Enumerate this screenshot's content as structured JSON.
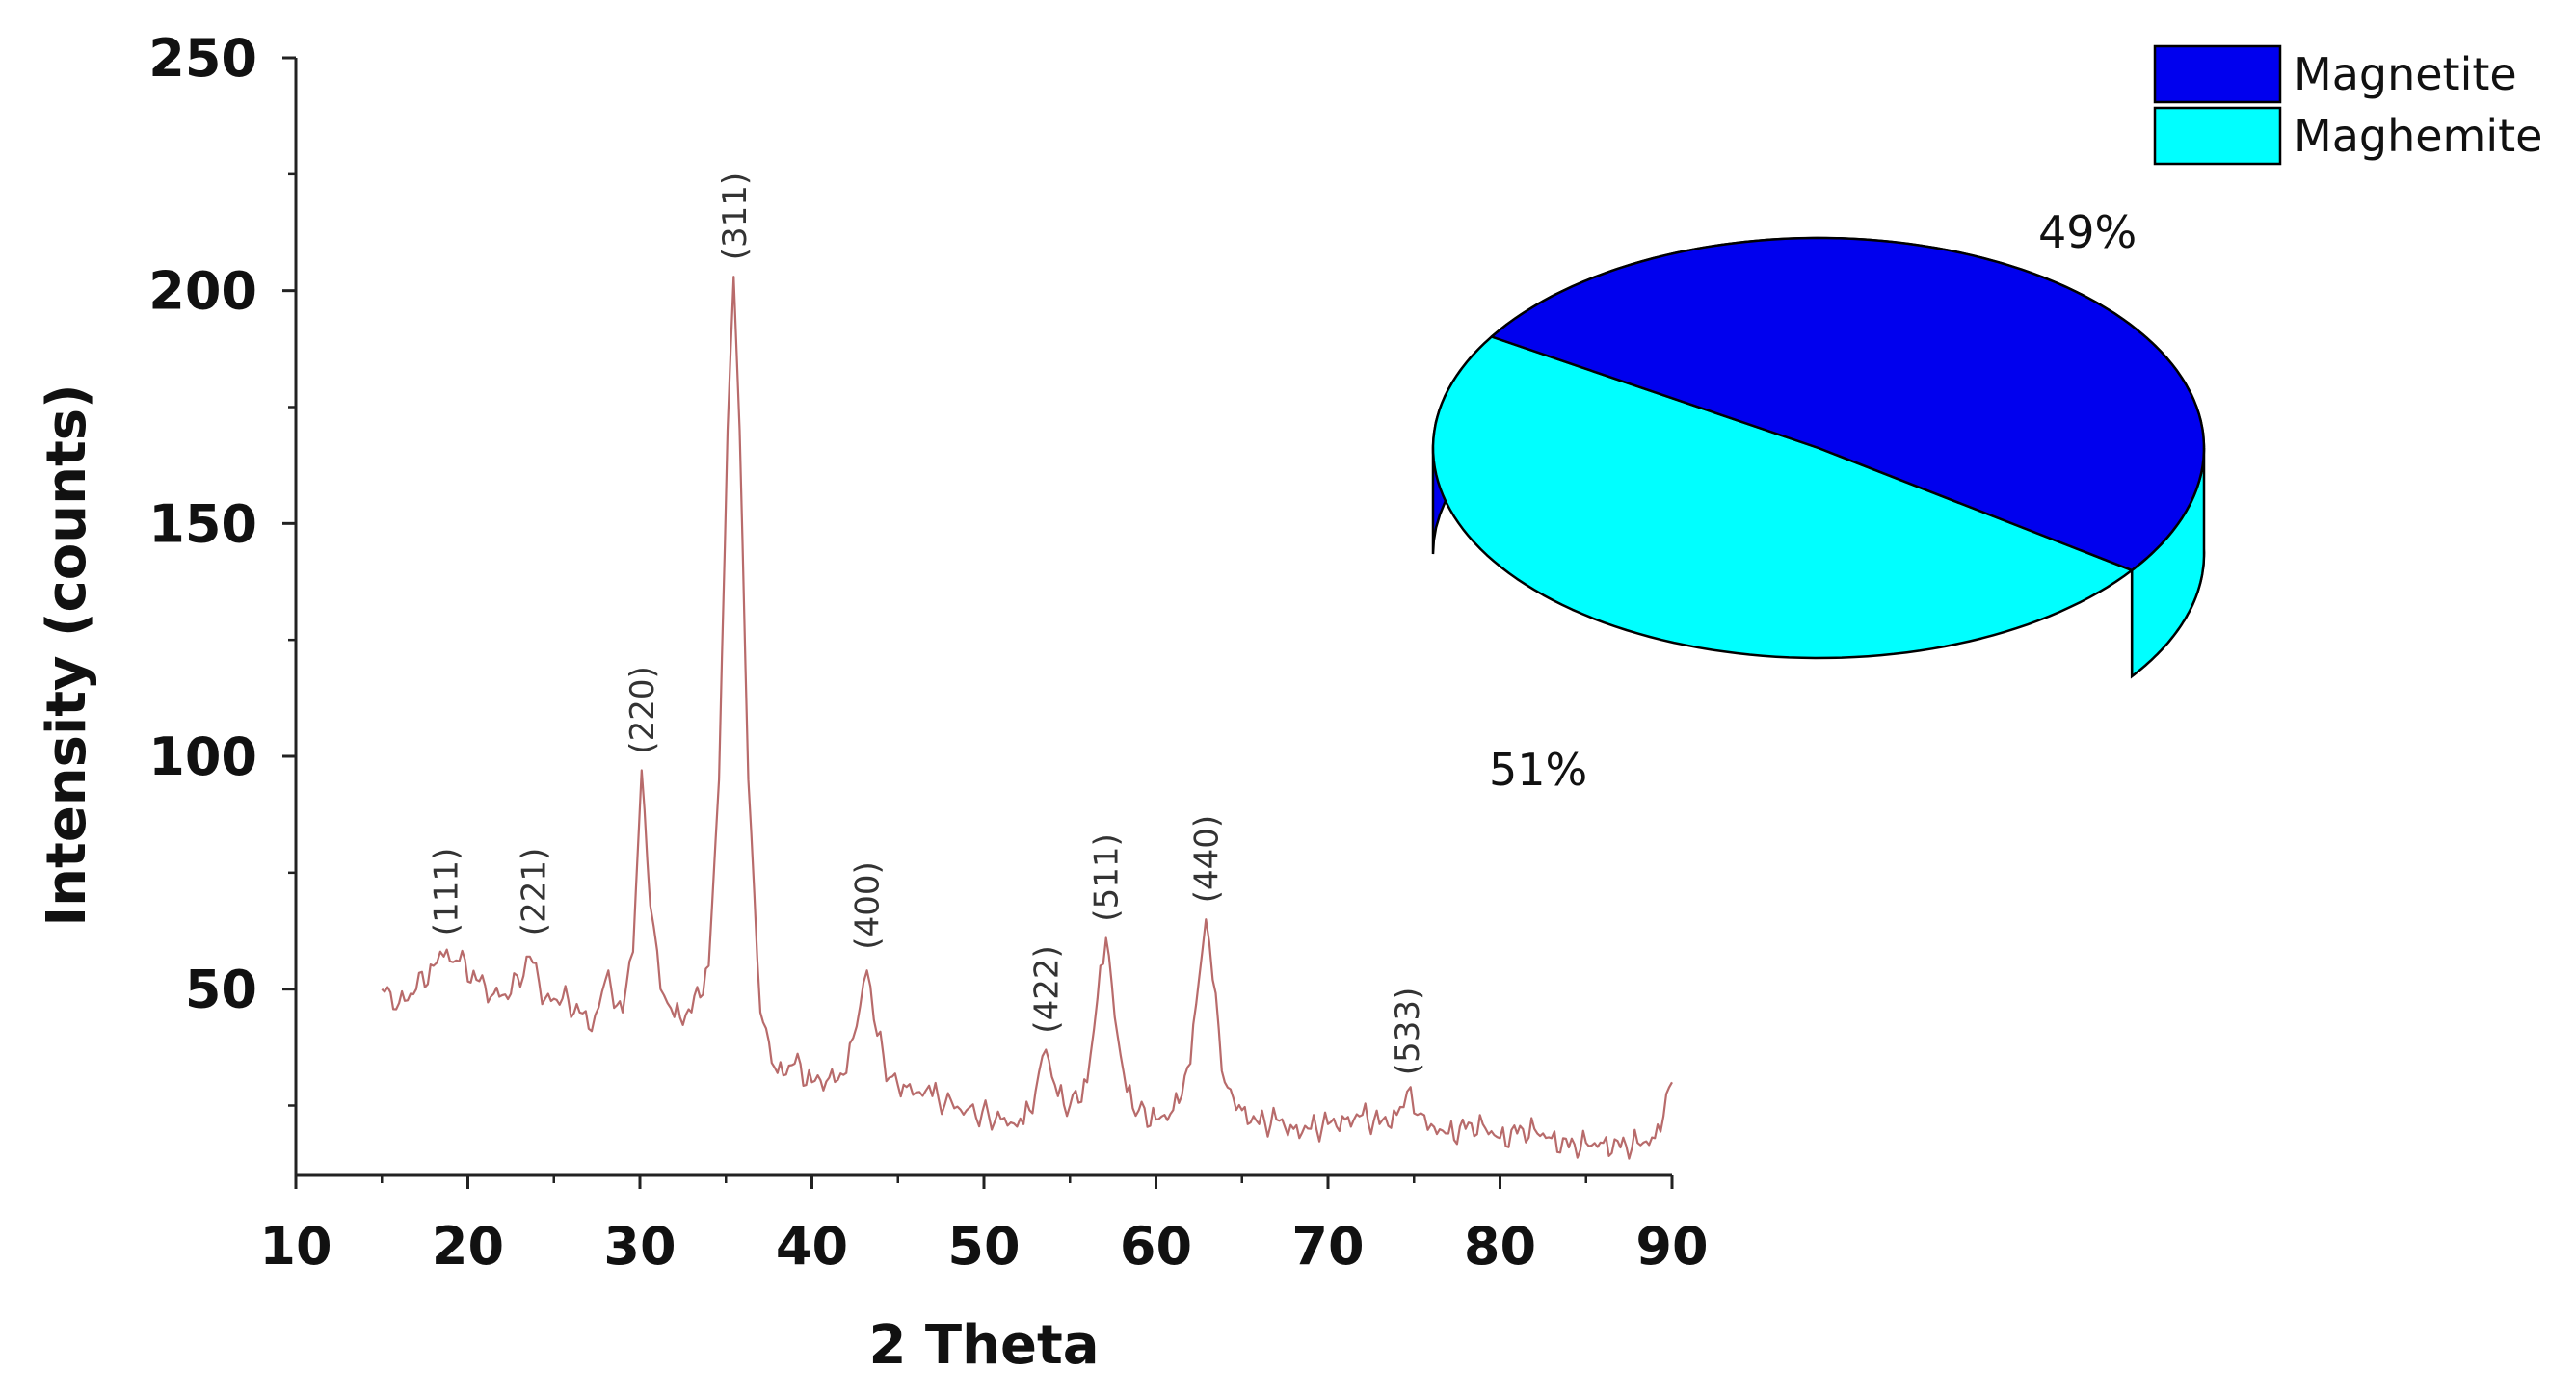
{
  "chart_data": [
    {
      "type": "line",
      "title": "",
      "xlabel": "2 Theta",
      "ylabel": "Intensity (counts)",
      "xlim": [
        10,
        90
      ],
      "ylim": [
        10,
        250
      ],
      "xticks": [
        "10",
        "20",
        "30",
        "40",
        "50",
        "60",
        "70",
        "80",
        "90"
      ],
      "yticks": [
        "50",
        "100",
        "150",
        "200",
        "250"
      ],
      "grid": false,
      "line_color": "#b86b6b",
      "series": [
        {
          "x": [
            15,
            16,
            17,
            18,
            18.6,
            19.5,
            20.5,
            21.5,
            22.5,
            23.6,
            24.5,
            25.5,
            26.5,
            27.2,
            28,
            29,
            29.6,
            30.1,
            30.6,
            31.2,
            32,
            33,
            34,
            34.6,
            35.1,
            35.45,
            35.8,
            36.3,
            37,
            38,
            39,
            40,
            41,
            42,
            42.6,
            43.2,
            43.8,
            44.5,
            45.5,
            47,
            49,
            51,
            52.3,
            53,
            53.6,
            54.3,
            55,
            56,
            56.6,
            57.1,
            57.6,
            58.3,
            59,
            60,
            61,
            62,
            62.5,
            62.9,
            63.3,
            64,
            65,
            66,
            67,
            68,
            69,
            70,
            71,
            72,
            73,
            74,
            74.6,
            75.2,
            76,
            77,
            78,
            79,
            80,
            81,
            82,
            83,
            84,
            85,
            86,
            87,
            88,
            89,
            90
          ],
          "y": [
            50,
            47,
            50,
            55,
            57,
            56,
            52,
            49,
            49,
            57,
            48,
            48,
            45,
            41,
            52,
            45,
            58,
            97,
            68,
            50,
            44,
            45,
            55,
            95,
            170,
            203,
            170,
            95,
            45,
            32,
            34,
            30,
            31,
            32,
            42,
            54,
            40,
            31,
            29,
            27,
            24,
            22,
            21,
            28,
            37,
            27,
            25,
            30,
            48,
            61,
            44,
            28,
            24,
            22,
            24,
            34,
            52,
            65,
            52,
            30,
            24,
            21,
            22,
            20,
            20,
            21,
            22,
            23,
            21,
            23,
            28,
            23,
            21,
            19,
            20,
            21,
            18,
            19,
            20,
            18,
            16,
            17,
            17,
            16,
            17,
            18,
            30
          ]
        }
      ],
      "annotations": [
        {
          "label": "(111)",
          "x": 18.7,
          "y": 59
        },
        {
          "label": "(221)",
          "x": 23.8,
          "y": 59
        },
        {
          "label": "(220)",
          "x": 30.1,
          "y": 98
        },
        {
          "label": "(311)",
          "x": 35.5,
          "y": 204
        },
        {
          "label": "(400)",
          "x": 43.2,
          "y": 56
        },
        {
          "label": "(422)",
          "x": 53.6,
          "y": 38
        },
        {
          "label": "(511)",
          "x": 57.1,
          "y": 62
        },
        {
          "label": "(440)",
          "x": 62.9,
          "y": 66
        },
        {
          "label": "(533)",
          "x": 74.6,
          "y": 29
        }
      ]
    },
    {
      "type": "pie",
      "title": "",
      "style": "3d",
      "legend_position": "top-right",
      "slices": [
        {
          "label": "Magnetite",
          "value": 51,
          "display": "51%",
          "color": "#0000ee"
        },
        {
          "label": "Maghemite",
          "value": 49,
          "display": "49%",
          "color": "#00ffff"
        }
      ]
    }
  ]
}
